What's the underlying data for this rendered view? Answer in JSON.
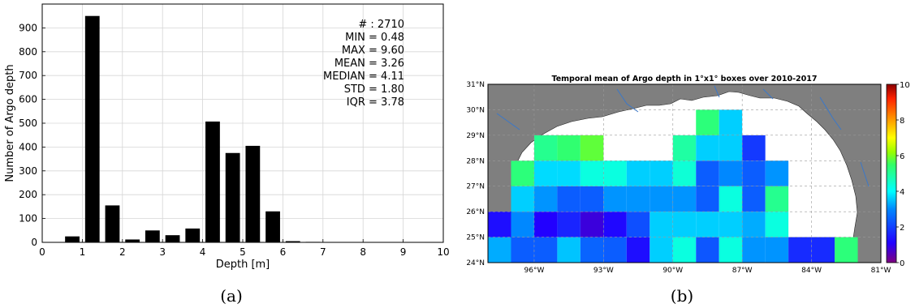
{
  "chart_data": [
    {
      "type": "bar",
      "panel_label": "(a)",
      "xlabel": "Depth [m]",
      "ylabel": "Number of Argo depth",
      "xlim": [
        0,
        10
      ],
      "ylim": [
        0,
        1000
      ],
      "xticks": [
        "0",
        "1",
        "2",
        "3",
        "4",
        "5",
        "6",
        "7",
        "8",
        "9",
        "10"
      ],
      "yticks": [
        "0",
        "100",
        "200",
        "300",
        "400",
        "500",
        "600",
        "700",
        "800",
        "900"
      ],
      "grid": true,
      "bin_centers": [
        0.75,
        1.25,
        1.75,
        2.25,
        2.75,
        3.25,
        3.75,
        4.25,
        4.75,
        5.25,
        5.75,
        6.25,
        6.75,
        7.25,
        7.75,
        8.25,
        8.75,
        9.25,
        9.75
      ],
      "values": [
        25,
        950,
        155,
        12,
        50,
        30,
        58,
        507,
        375,
        405,
        130,
        5,
        2,
        1,
        0,
        0,
        0,
        0,
        1
      ],
      "stats": [
        "# : 2710",
        "MIN = 0.48",
        "MAX =  9.60",
        "MEAN = 3.26",
        "MEDIAN = 4.11",
        "STD = 1.80",
        "IQR = 3.78"
      ]
    },
    {
      "type": "heatmap",
      "panel_label": "(b)",
      "title": "Temporal mean of Argo depth in 1°x1° boxes over 2010-2017",
      "lon_range": [
        -98,
        -81
      ],
      "lat_range": [
        24,
        31
      ],
      "xticks": [
        "96°W",
        "93°W",
        "90°W",
        "87°W",
        "84°W",
        "81°W"
      ],
      "xtick_values": [
        -96,
        -93,
        -90,
        -87,
        -84,
        -81
      ],
      "yticks": [
        "24°N",
        "25°N",
        "26°N",
        "27°N",
        "28°N",
        "29°N",
        "30°N",
        "31°N"
      ],
      "ytick_values": [
        24,
        25,
        26,
        27,
        28,
        29,
        30,
        31
      ],
      "colorbar": {
        "min": 0,
        "max": 10,
        "ticks": [
          "0",
          "2",
          "4",
          "6",
          "8",
          "10"
        ],
        "colormap": "jet"
      },
      "colors": {
        "land": "#7f7f7f",
        "ocean": "#ffffff",
        "river": "#3a78c9"
      },
      "cells": [
        {
          "lon": -97.5,
          "lat": 24.5,
          "value": 3.3
        },
        {
          "lon": -96.5,
          "lat": 24.5,
          "value": 2.4
        },
        {
          "lon": -95.5,
          "lat": 24.5,
          "value": 2.4
        },
        {
          "lon": -94.5,
          "lat": 24.5,
          "value": 3.5
        },
        {
          "lon": -93.5,
          "lat": 24.5,
          "value": 2.5
        },
        {
          "lon": -92.5,
          "lat": 24.5,
          "value": 2.4
        },
        {
          "lon": -91.5,
          "lat": 24.5,
          "value": 1.3
        },
        {
          "lon": -90.5,
          "lat": 24.5,
          "value": 3.6
        },
        {
          "lon": -89.5,
          "lat": 24.5,
          "value": 4.3
        },
        {
          "lon": -88.5,
          "lat": 24.5,
          "value": 2.3
        },
        {
          "lon": -87.5,
          "lat": 24.5,
          "value": 4.3
        },
        {
          "lon": -86.5,
          "lat": 24.5,
          "value": 3.1
        },
        {
          "lon": -85.5,
          "lat": 24.5,
          "value": 3.1
        },
        {
          "lon": -84.5,
          "lat": 24.5,
          "value": 1.7
        },
        {
          "lon": -83.5,
          "lat": 24.5,
          "value": 1.7
        },
        {
          "lon": -82.5,
          "lat": 24.5,
          "value": 5.3
        },
        {
          "lon": -97.5,
          "lat": 25.5,
          "value": 1.3
        },
        {
          "lon": -96.5,
          "lat": 25.5,
          "value": 3.0
        },
        {
          "lon": -95.5,
          "lat": 25.5,
          "value": 1.1
        },
        {
          "lon": -94.5,
          "lat": 25.5,
          "value": 1.6
        },
        {
          "lon": -93.5,
          "lat": 25.5,
          "value": 0.8
        },
        {
          "lon": -92.5,
          "lat": 25.5,
          "value": 1.2
        },
        {
          "lon": -91.5,
          "lat": 25.5,
          "value": 2.2
        },
        {
          "lon": -90.5,
          "lat": 25.5,
          "value": 3.6
        },
        {
          "lon": -89.5,
          "lat": 25.5,
          "value": 3.6
        },
        {
          "lon": -88.5,
          "lat": 25.5,
          "value": 3.6
        },
        {
          "lon": -87.5,
          "lat": 25.5,
          "value": 3.6
        },
        {
          "lon": -86.5,
          "lat": 25.5,
          "value": 3.3
        },
        {
          "lon": -85.5,
          "lat": 25.5,
          "value": 4.3
        },
        {
          "lon": -96.5,
          "lat": 26.5,
          "value": 3.6
        },
        {
          "lon": -95.5,
          "lat": 26.5,
          "value": 3.1
        },
        {
          "lon": -94.5,
          "lat": 26.5,
          "value": 2.4
        },
        {
          "lon": -93.5,
          "lat": 26.5,
          "value": 2.4
        },
        {
          "lon": -92.5,
          "lat": 26.5,
          "value": 3.1
        },
        {
          "lon": -91.5,
          "lat": 26.5,
          "value": 3.1
        },
        {
          "lon": -90.5,
          "lat": 26.5,
          "value": 3.1
        },
        {
          "lon": -89.5,
          "lat": 26.5,
          "value": 3.1
        },
        {
          "lon": -88.5,
          "lat": 26.5,
          "value": 2.4
        },
        {
          "lon": -87.5,
          "lat": 26.5,
          "value": 4.3
        },
        {
          "lon": -86.5,
          "lat": 26.5,
          "value": 2.4
        },
        {
          "lon": -85.5,
          "lat": 26.5,
          "value": 5.1
        },
        {
          "lon": -96.5,
          "lat": 27.5,
          "value": 5.3
        },
        {
          "lon": -95.5,
          "lat": 27.5,
          "value": 3.7
        },
        {
          "lon": -94.5,
          "lat": 27.5,
          "value": 3.7
        },
        {
          "lon": -93.5,
          "lat": 27.5,
          "value": 4.3
        },
        {
          "lon": -92.5,
          "lat": 27.5,
          "value": 4.3
        },
        {
          "lon": -91.5,
          "lat": 27.5,
          "value": 3.6
        },
        {
          "lon": -90.5,
          "lat": 27.5,
          "value": 3.6
        },
        {
          "lon": -89.5,
          "lat": 27.5,
          "value": 4.4
        },
        {
          "lon": -88.5,
          "lat": 27.5,
          "value": 2.4
        },
        {
          "lon": -87.5,
          "lat": 27.5,
          "value": 3.0
        },
        {
          "lon": -86.5,
          "lat": 27.5,
          "value": 2.4
        },
        {
          "lon": -85.5,
          "lat": 27.5,
          "value": 3.1
        },
        {
          "lon": -95.5,
          "lat": 28.5,
          "value": 5.1
        },
        {
          "lon": -94.5,
          "lat": 28.5,
          "value": 5.4
        },
        {
          "lon": -93.5,
          "lat": 28.5,
          "value": 5.8
        },
        {
          "lon": -89.5,
          "lat": 28.5,
          "value": 4.9
        },
        {
          "lon": -88.5,
          "lat": 28.5,
          "value": 3.6
        },
        {
          "lon": -87.5,
          "lat": 28.5,
          "value": 3.6
        },
        {
          "lon": -86.5,
          "lat": 28.5,
          "value": 1.9
        },
        {
          "lon": -88.5,
          "lat": 29.5,
          "value": 5.3
        },
        {
          "lon": -87.5,
          "lat": 29.5,
          "value": 3.6
        }
      ]
    }
  ]
}
